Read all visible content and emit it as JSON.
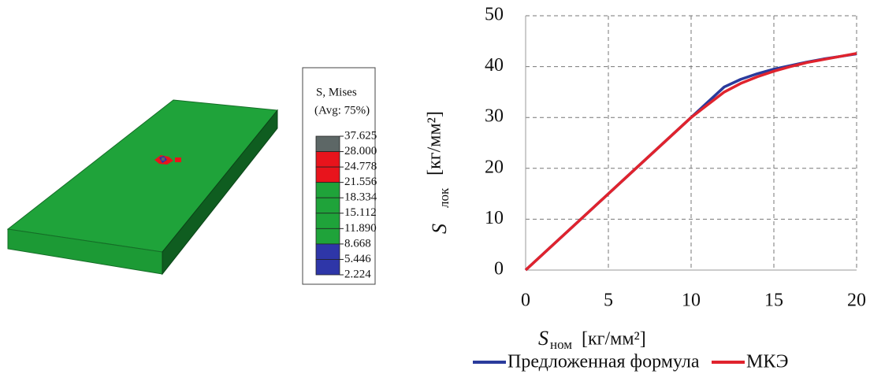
{
  "contour_legend": {
    "title": [
      "S, Mises",
      "(Avg: 75%)"
    ],
    "levels": [
      "37.625",
      "28.000",
      "24.778",
      "21.556",
      "18.334",
      "15.112",
      "11.890",
      "8.668",
      "5.446",
      "2.224"
    ],
    "colors": [
      "#5d6766",
      "#e8141c",
      "#e8141c",
      "#1fa33a",
      "#1fa33a",
      "#1fa33a",
      "#1fa33a",
      "#2e36a8",
      "#2e36a8"
    ]
  },
  "chart_data": {
    "type": "line",
    "xlabel": {
      "symbol": "S",
      "subscript": "ном",
      "unit": "[кг/мм²]"
    },
    "ylabel": {
      "symbol": "S",
      "subscript": "лок",
      "unit": "[кг/мм²]"
    },
    "x": [
      0,
      2,
      4,
      6,
      8,
      10,
      11,
      12,
      13,
      14,
      15,
      16,
      17,
      18,
      19,
      20
    ],
    "series": [
      {
        "name": "Предложенная формула",
        "color": "#2a3b9c",
        "values": [
          0,
          6,
          12,
          18,
          24,
          30,
          33,
          36,
          37.5,
          38.6,
          39.5,
          40.2,
          40.9,
          41.5,
          42,
          42.5
        ]
      },
      {
        "name": "МКЭ",
        "color": "#e0232d",
        "values": [
          0,
          6,
          12,
          18,
          24,
          30,
          32.5,
          35,
          36.7,
          38,
          39.1,
          40,
          40.8,
          41.4,
          42,
          42.6
        ]
      }
    ],
    "xlim": [
      0,
      20
    ],
    "ylim": [
      0,
      50
    ],
    "xticks": [
      0,
      5,
      10,
      15,
      20
    ],
    "yticks": [
      0,
      10,
      20,
      30,
      40,
      50
    ],
    "grid": true
  }
}
